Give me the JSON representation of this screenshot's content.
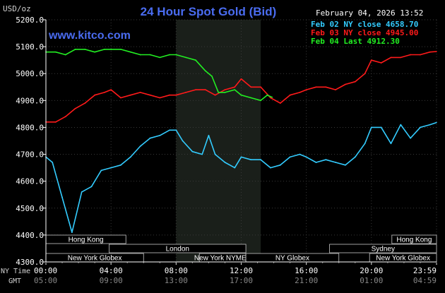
{
  "title": "24 Hour Spot Gold (Bid)",
  "watermark": "www.kitco.com",
  "unit_label": "USD/oz",
  "timestamp": "February 04, 2026 13:52",
  "legend": [
    {
      "label": "Feb 02 NY close 4658.70",
      "color": "#33ccff"
    },
    {
      "label": "Feb 03 NY close 4945.00",
      "color": "#ff1a1a"
    },
    {
      "label": "Feb 04 Last 4912.30",
      "color": "#22ee22"
    }
  ],
  "time_labels": {
    "ny": "NY Time",
    "gmt": "GMT"
  },
  "market_bars": [
    {
      "label": "Hong Kong",
      "start": 0,
      "end": 8.6
    },
    {
      "label": "London",
      "start": 6.8,
      "end": 21.5
    },
    {
      "label": "New York Globex",
      "start": 0,
      "end": 10.5
    },
    {
      "label": "New York NYMEX",
      "start": 16.5,
      "end": 21.5
    },
    {
      "label": "NY Globex",
      "start": 21.5,
      "end": 31.5
    },
    {
      "label": "Hong Kong",
      "start": 37.2,
      "end": 42
    },
    {
      "label": "Sydney",
      "start": 30.5,
      "end": 42
    },
    {
      "label": "New York Globex",
      "start": 34.8,
      "end": 42
    }
  ],
  "chart_data": {
    "type": "line",
    "title": "24 Hour Spot Gold (Bid)",
    "ylabel": "USD/oz",
    "ylim": [
      4300,
      5200
    ],
    "yticks": [
      "5200.0",
      "5100.0",
      "5000.0",
      "4900.0",
      "4800.0",
      "4700.0",
      "4600.0",
      "4500.0",
      "4400.0",
      "4300.0"
    ],
    "xlim": [
      0,
      24
    ],
    "xticks_ny": [
      "00:00",
      "04:00",
      "08:00",
      "12:00",
      "16:00",
      "20:00",
      "23:59"
    ],
    "xticks_gmt": [
      "05:00",
      "09:00",
      "13:00",
      "17:00",
      "21:00",
      "01:00",
      "04:59"
    ],
    "grid": true,
    "shaded_range_hours": [
      8,
      13.2
    ],
    "series": [
      {
        "name": "Feb 02 NY close 4658.70",
        "color": "#33ccff",
        "x": [
          0,
          0.4,
          1.0,
          1.6,
          2.2,
          2.8,
          3.4,
          4.0,
          4.6,
          5.2,
          5.8,
          6.4,
          7.0,
          7.6,
          8.0,
          8.4,
          9.0,
          9.6,
          10.0,
          10.4,
          11.0,
          11.6,
          12.0,
          12.6,
          13.2,
          13.8,
          14.4,
          15.0,
          15.6,
          16.0,
          16.6,
          17.2,
          17.8,
          18.4,
          19.0,
          19.6,
          20.0,
          20.6,
          21.2,
          21.8,
          22.4,
          23.0,
          23.6,
          23.99
        ],
        "y": [
          4690,
          4670,
          4540,
          4410,
          4560,
          4580,
          4640,
          4650,
          4660,
          4690,
          4730,
          4760,
          4770,
          4790,
          4790,
          4750,
          4710,
          4700,
          4770,
          4700,
          4670,
          4650,
          4690,
          4680,
          4680,
          4650,
          4660,
          4690,
          4700,
          4690,
          4670,
          4680,
          4670,
          4660,
          4690,
          4740,
          4800,
          4800,
          4740,
          4810,
          4760,
          4800,
          4810,
          4818
        ]
      },
      {
        "name": "Feb 03 NY close 4945.00",
        "color": "#ff1a1a",
        "x": [
          0,
          0.6,
          1.2,
          1.8,
          2.4,
          3.0,
          3.6,
          4.0,
          4.6,
          5.2,
          5.8,
          6.4,
          7.0,
          7.6,
          8.0,
          8.6,
          9.2,
          9.8,
          10.4,
          11.0,
          11.6,
          12.0,
          12.6,
          13.2,
          13.8,
          14.4,
          15.0,
          15.6,
          16.0,
          16.6,
          17.2,
          17.8,
          18.4,
          19.0,
          19.6,
          20.0,
          20.6,
          21.2,
          21.8,
          22.4,
          23.0,
          23.6,
          23.99
        ],
        "y": [
          4820,
          4820,
          4840,
          4870,
          4890,
          4920,
          4930,
          4940,
          4910,
          4920,
          4930,
          4920,
          4910,
          4920,
          4920,
          4930,
          4940,
          4940,
          4920,
          4940,
          4950,
          4980,
          4950,
          4950,
          4910,
          4890,
          4920,
          4930,
          4940,
          4950,
          4950,
          4940,
          4960,
          4970,
          5000,
          5050,
          5040,
          5060,
          5060,
          5070,
          5070,
          5080,
          5082
        ]
      },
      {
        "name": "Feb 04 Last 4912.30",
        "color": "#22ee22",
        "x": [
          0,
          0.6,
          1.2,
          1.8,
          2.4,
          3.0,
          3.6,
          4.0,
          4.6,
          5.2,
          5.8,
          6.4,
          7.0,
          7.6,
          8.0,
          8.6,
          9.2,
          9.8,
          10.2,
          10.6,
          11.0,
          11.6,
          12.0,
          12.6,
          13.2,
          13.6,
          13.9
        ],
        "y": [
          5080,
          5080,
          5070,
          5090,
          5090,
          5080,
          5090,
          5090,
          5090,
          5080,
          5070,
          5070,
          5060,
          5070,
          5070,
          5060,
          5050,
          5010,
          4990,
          4930,
          4930,
          4940,
          4920,
          4910,
          4900,
          4920,
          4912
        ]
      }
    ]
  }
}
